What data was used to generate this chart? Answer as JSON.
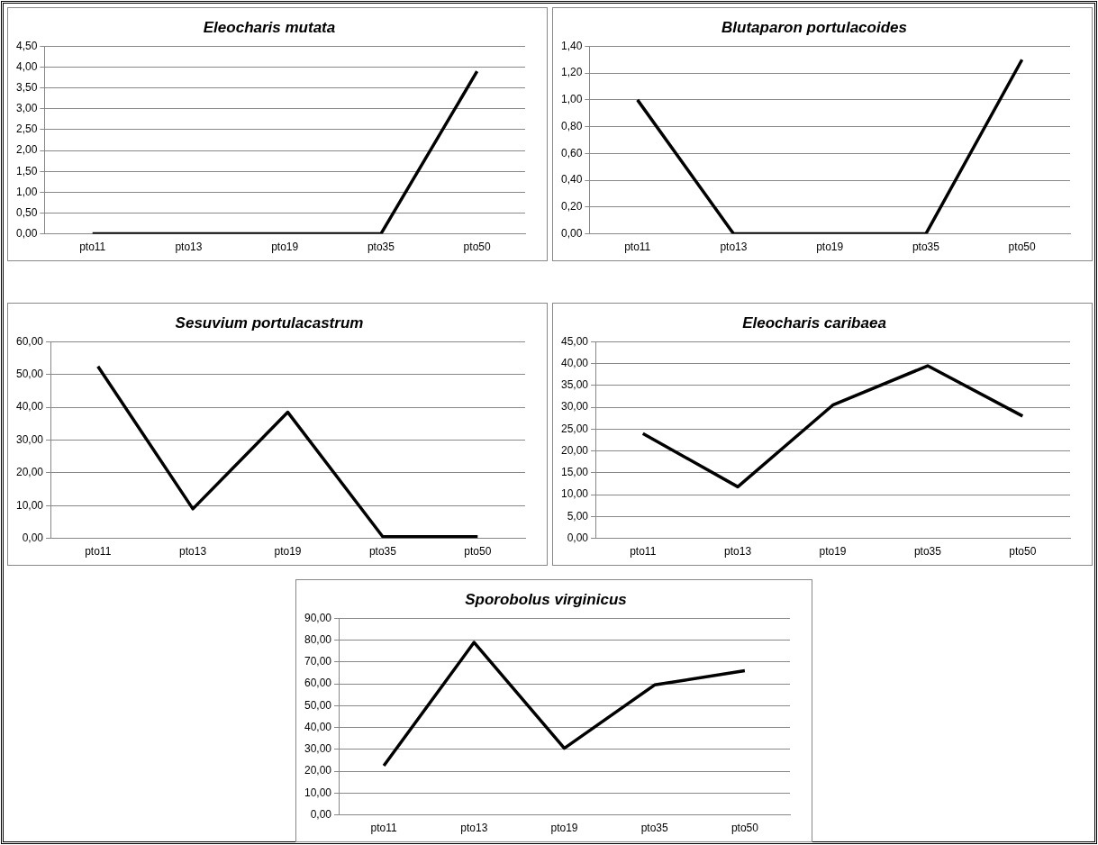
{
  "chart_data": [
    {
      "type": "line",
      "title": "Eleocharis mutata",
      "categories": [
        "pto11",
        "pto13",
        "pto19",
        "pto35",
        "pto50"
      ],
      "values": [
        0,
        0,
        0,
        0,
        3.9
      ],
      "color": "#000000",
      "marker": "none",
      "line_style": "solid",
      "grid": "y",
      "ylim": [
        0,
        4.5
      ],
      "yticks": [
        {
          "value": 0,
          "label": "0,00"
        },
        {
          "value": 0.5,
          "label": "0,50"
        },
        {
          "value": 1,
          "label": "1,00"
        },
        {
          "value": 1.5,
          "label": "1,50"
        },
        {
          "value": 2,
          "label": "2,00"
        },
        {
          "value": 2.5,
          "label": "2,50"
        },
        {
          "value": 3,
          "label": "3,00"
        },
        {
          "value": 3.5,
          "label": "3,50"
        },
        {
          "value": 4,
          "label": "4,00"
        },
        {
          "value": 4.5,
          "label": "4,50"
        }
      ]
    },
    {
      "type": "line",
      "title": "Blutaparon portulacoides",
      "categories": [
        "pto11",
        "pto13",
        "pto19",
        "pto35",
        "pto50"
      ],
      "values": [
        1.0,
        0,
        0,
        0,
        1.3
      ],
      "color": "#000000",
      "marker": "none",
      "line_style": "solid",
      "grid": "y",
      "ylim": [
        0,
        1.4
      ],
      "yticks": [
        {
          "value": 0,
          "label": "0,00"
        },
        {
          "value": 0.2,
          "label": "0,20"
        },
        {
          "value": 0.4,
          "label": "0,40"
        },
        {
          "value": 0.6,
          "label": "0,60"
        },
        {
          "value": 0.8,
          "label": "0,80"
        },
        {
          "value": 1,
          "label": "1,00"
        },
        {
          "value": 1.2,
          "label": "1,20"
        },
        {
          "value": 1.4,
          "label": "1,40"
        }
      ]
    },
    {
      "type": "line",
      "title": "Sesuvium portulacastrum",
      "categories": [
        "pto11",
        "pto13",
        "pto19",
        "pto35",
        "pto50"
      ],
      "values": [
        52.5,
        9,
        38.5,
        0.5,
        0.5
      ],
      "color": "#000000",
      "marker": "none",
      "line_style": "solid",
      "grid": "y",
      "ylim": [
        0,
        60
      ],
      "yticks": [
        {
          "value": 0,
          "label": "0,00"
        },
        {
          "value": 10,
          "label": "10,00"
        },
        {
          "value": 20,
          "label": "20,00"
        },
        {
          "value": 30,
          "label": "30,00"
        },
        {
          "value": 40,
          "label": "40,00"
        },
        {
          "value": 50,
          "label": "50,00"
        },
        {
          "value": 60,
          "label": "60,00"
        }
      ]
    },
    {
      "type": "line",
      "title": "Eleocharis caribaea",
      "categories": [
        "pto11",
        "pto13",
        "pto19",
        "pto35",
        "pto50"
      ],
      "values": [
        24,
        11.8,
        30.5,
        39.5,
        28
      ],
      "color": "#000000",
      "marker": "none",
      "line_style": "solid",
      "grid": "y",
      "ylim": [
        0,
        45
      ],
      "yticks": [
        {
          "value": 0,
          "label": "0,00"
        },
        {
          "value": 5,
          "label": "5,00"
        },
        {
          "value": 10,
          "label": "10,00"
        },
        {
          "value": 15,
          "label": "15,00"
        },
        {
          "value": 20,
          "label": "20,00"
        },
        {
          "value": 25,
          "label": "25,00"
        },
        {
          "value": 30,
          "label": "30,00"
        },
        {
          "value": 35,
          "label": "35,00"
        },
        {
          "value": 40,
          "label": "40,00"
        },
        {
          "value": 45,
          "label": "45,00"
        }
      ]
    },
    {
      "type": "line",
      "title": "Sporobolus virginicus",
      "categories": [
        "pto11",
        "pto13",
        "pto19",
        "pto35",
        "pto50"
      ],
      "values": [
        22.5,
        79,
        30.5,
        59.5,
        66
      ],
      "color": "#000000",
      "marker": "none",
      "line_style": "solid",
      "grid": "y",
      "ylim": [
        0,
        90
      ],
      "yticks": [
        {
          "value": 0,
          "label": "0,00"
        },
        {
          "value": 10,
          "label": "10,00"
        },
        {
          "value": 20,
          "label": "20,00"
        },
        {
          "value": 30,
          "label": "30,00"
        },
        {
          "value": 40,
          "label": "40,00"
        },
        {
          "value": 50,
          "label": "50,00"
        },
        {
          "value": 60,
          "label": "60,00"
        },
        {
          "value": 70,
          "label": "70,00"
        },
        {
          "value": 80,
          "label": "80,00"
        },
        {
          "value": 90,
          "label": "90,00"
        }
      ]
    }
  ]
}
